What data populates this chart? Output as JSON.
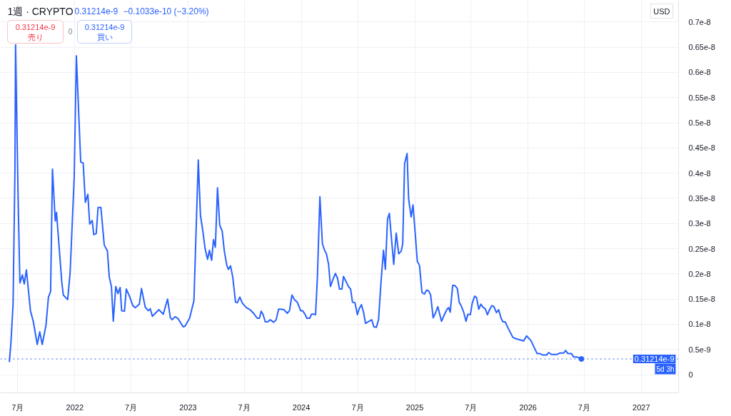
{
  "chart_data": {
    "type": "line",
    "title": "1週 · CRYPTO",
    "annotations": [
      "0.31214e-9",
      "−0.1033e-10 (−3.20%)",
      "0.31214e-9",
      "売り",
      "0",
      "0.31214e-9",
      "買い",
      "USD",
      "5d 3h"
    ],
    "xlim": [
      "2021-05-06",
      "2027-05-01"
    ],
    "xticks": [
      {
        "value": "2021-07",
        "label": "7月"
      },
      "2022",
      {
        "value": "2022-07",
        "label": "7月"
      },
      "2023",
      {
        "value": "2023-07",
        "label": "7月"
      },
      "2024",
      {
        "value": "2024-07",
        "label": "7月"
      },
      "2025",
      {
        "value": "2025-07",
        "label": "7月"
      },
      "2026",
      {
        "value": "2026-07",
        "label": "7月"
      },
      "2027"
    ],
    "ylim": [
      -3.6e-10,
      7.43e-09
    ],
    "yticks": [
      0,
      {
        "value": 5e-10,
        "label": "0.5e-9"
      },
      {
        "value": 1e-09,
        "label": "0.1e-8"
      },
      {
        "value": 1.5e-09,
        "label": "0.15e-8"
      },
      {
        "value": 2e-09,
        "label": "0.2e-8"
      },
      {
        "value": 2.5e-09,
        "label": "0.25e-8"
      },
      {
        "value": 3e-09,
        "label": "0.3e-8"
      },
      {
        "value": 3.5e-09,
        "label": "0.35e-8"
      },
      {
        "value": 4e-09,
        "label": "0.4e-8"
      },
      {
        "value": 4.5e-09,
        "label": "0.45e-8"
      },
      {
        "value": 5e-09,
        "label": "0.5e-8"
      },
      {
        "value": 5.5e-09,
        "label": "0.55e-8"
      },
      {
        "value": 6e-09,
        "label": "0.6e-8"
      },
      {
        "value": 6.5e-09,
        "label": "0.65e-8"
      },
      {
        "value": 7e-09,
        "label": "0.7e-8"
      }
    ],
    "grid": true,
    "ref_lines": [
      {
        "axis": "y",
        "value": 3.1214e-10,
        "label": "0.31214e-9",
        "color": "#2962ff",
        "line_style": "dotted"
      }
    ],
    "series": [
      {
        "color": "#2962ff",
        "x": [
          "2021-06-04",
          "2021-06-09",
          "2021-06-16",
          "2021-06-22",
          "2021-06-24",
          "2021-07-02",
          "2021-07-08",
          "2021-07-16",
          "2021-07-22",
          "2021-07-29",
          "2021-08-11",
          "2021-08-20",
          "2021-09-02",
          "2021-09-10",
          "2021-09-18",
          "2021-09-30",
          "2021-10-08",
          "2021-10-15",
          "2021-10-21",
          "2021-10-30",
          "2021-11-03",
          "2021-11-20",
          "2021-11-25",
          "2021-12-09",
          "2021-12-17",
          "2021-12-30",
          "2022-01-06",
          "2022-01-20",
          "2022-01-28",
          "2022-02-04",
          "2022-02-12",
          "2022-02-18",
          "2022-02-26",
          "2022-03-03",
          "2022-03-11",
          "2022-03-17",
          "2022-03-26",
          "2022-04-06",
          "2022-04-16",
          "2022-04-22",
          "2022-04-29",
          "2022-05-05",
          "2022-05-13",
          "2022-05-20",
          "2022-05-27",
          "2022-06-01",
          "2022-06-10",
          "2022-06-16",
          "2022-06-26",
          "2022-07-07",
          "2022-07-15",
          "2022-07-28",
          "2022-08-04",
          "2022-08-16",
          "2022-08-26",
          "2022-09-01",
          "2022-09-08",
          "2022-09-29",
          "2022-10-13",
          "2022-10-27",
          "2022-11-05",
          "2022-11-11",
          "2022-11-20",
          "2022-11-29",
          "2022-12-16",
          "2022-12-22",
          "2023-01-06",
          "2023-01-20",
          "2023-02-03",
          "2023-02-10",
          "2023-02-17",
          "2023-02-25",
          "2023-03-05",
          "2023-03-11",
          "2023-03-18",
          "2023-03-24",
          "2023-03-30",
          "2023-04-06",
          "2023-04-13",
          "2023-04-21",
          "2023-04-28",
          "2023-05-06",
          "2023-05-11",
          "2023-05-18",
          "2023-05-25",
          "2023-06-03",
          "2023-06-09",
          "2023-06-17",
          "2023-06-25",
          "2023-07-08",
          "2023-07-20",
          "2023-07-31",
          "2023-08-12",
          "2023-08-19",
          "2023-08-25",
          "2023-08-31",
          "2023-09-07",
          "2023-09-15",
          "2023-09-23",
          "2023-10-04",
          "2023-10-12",
          "2023-10-20",
          "2023-10-27",
          "2023-11-06",
          "2023-11-17",
          "2023-11-24",
          "2023-12-02",
          "2023-12-10",
          "2023-12-19",
          "2023-12-30",
          "2024-01-05",
          "2024-01-13",
          "2024-01-19",
          "2024-01-28",
          "2024-02-03",
          "2024-02-11",
          "2024-02-16",
          "2024-02-22",
          "2024-03-01",
          "2024-03-09",
          "2024-03-16",
          "2024-03-22",
          "2024-03-29",
          "2024-04-04",
          "2024-04-12",
          "2024-04-20",
          "2024-04-27",
          "2024-05-03",
          "2024-05-11",
          "2024-05-16",
          "2024-05-25",
          "2024-06-01",
          "2024-06-08",
          "2024-06-14",
          "2024-06-22",
          "2024-06-30",
          "2024-07-05",
          "2024-07-13",
          "2024-07-20",
          "2024-07-26",
          "2024-08-04",
          "2024-08-15",
          "2024-08-22",
          "2024-08-30",
          "2024-09-06",
          "2024-09-14",
          "2024-09-22",
          "2024-09-28",
          "2024-10-05",
          "2024-10-11",
          "2024-10-18",
          "2024-10-25",
          "2024-11-02",
          "2024-11-10",
          "2024-11-18",
          "2024-11-23",
          "2024-11-29",
          "2024-12-07",
          "2024-12-12",
          "2024-12-20",
          "2024-12-26",
          "2025-01-02",
          "2025-01-09",
          "2025-01-16",
          "2025-01-24",
          "2025-02-01",
          "2025-02-08",
          "2025-02-15",
          "2025-02-21",
          "2025-03-01",
          "2025-03-09",
          "2025-03-16",
          "2025-03-28",
          "2025-04-06",
          "2025-04-15",
          "2025-04-20",
          "2025-04-25",
          "2025-05-03",
          "2025-05-10",
          "2025-05-18",
          "2025-05-24",
          "2025-05-31",
          "2025-06-08",
          "2025-06-15",
          "2025-06-21",
          "2025-06-29",
          "2025-07-05",
          "2025-07-13",
          "2025-07-19",
          "2025-07-26",
          "2025-08-02",
          "2025-08-10",
          "2025-08-16",
          "2025-08-23",
          "2025-08-30",
          "2025-09-06",
          "2025-09-13",
          "2025-09-21",
          "2025-09-28",
          "2025-10-06",
          "2025-10-12",
          "2025-10-19",
          "2025-10-29",
          "2025-11-13",
          "2025-11-25",
          "2025-12-18",
          "2025-12-27",
          "2026-01-10",
          "2026-01-30",
          "2026-02-07",
          "2026-02-18",
          "2026-03-02",
          "2026-03-08",
          "2026-03-18",
          "2026-04-03",
          "2026-04-14",
          "2026-04-26",
          "2026-05-02",
          "2026-05-09",
          "2026-05-21",
          "2026-05-28",
          "2026-06-08",
          "2026-06-22"
        ],
        "values": [
          2.5e-10,
          6.3e-10,
          1.4e-09,
          4.05e-09,
          6.55e-09,
          3.58e-09,
          1.82e-09,
          1.98e-09,
          1.8e-09,
          2.08e-09,
          1.27e-09,
          1.06e-09,
          6e-10,
          8.5e-10,
          6e-10,
          9.8e-10,
          1.54e-09,
          1.65e-09,
          4.08e-09,
          3.05e-09,
          3.22e-09,
          1.84e-09,
          1.58e-09,
          1.49e-09,
          2.04e-09,
          3.91e-09,
          6.33e-09,
          4.22e-09,
          4.2e-09,
          3.42e-09,
          3.58e-09,
          2.99e-09,
          3.06e-09,
          2.78e-09,
          2.8e-09,
          3.32e-09,
          3.32e-09,
          2.57e-09,
          2.46e-09,
          1.94e-09,
          1.75e-09,
          1.06e-09,
          1.75e-09,
          1.61e-09,
          1.73e-09,
          1.27e-09,
          1.26e-09,
          1.7e-09,
          1.56e-09,
          1.37e-09,
          1.33e-09,
          1.4e-09,
          1.71e-09,
          1.34e-09,
          1.27e-09,
          1.31e-09,
          1.16e-09,
          1.29e-09,
          1.2e-09,
          1.5e-09,
          1.13e-09,
          1.09e-09,
          1.15e-09,
          1.12e-09,
          9.5e-10,
          9.6e-10,
          1.12e-09,
          1.47e-09,
          4.26e-09,
          3.16e-09,
          2.88e-09,
          2.5e-09,
          2.29e-09,
          2.47e-09,
          2.27e-09,
          2.68e-09,
          2.53e-09,
          3.71e-09,
          2.97e-09,
          2.85e-09,
          2.45e-09,
          2.17e-09,
          2.09e-09,
          2.16e-09,
          1.94e-09,
          1.44e-09,
          1.43e-09,
          1.54e-09,
          1.42e-09,
          1.33e-09,
          1.29e-09,
          1.22e-09,
          1.12e-09,
          1.12e-09,
          1.26e-09,
          1.19e-09,
          1.05e-09,
          1.05e-09,
          1.09e-09,
          1.04e-09,
          1.09e-09,
          1.3e-09,
          1.3e-09,
          1.29e-09,
          1.22e-09,
          1.27e-09,
          1.58e-09,
          1.49e-09,
          1.44e-09,
          1.27e-09,
          1.27e-09,
          1.2e-09,
          1.12e-09,
          1.12e-09,
          1.2e-09,
          1.2e-09,
          1.19e-09,
          1.94e-09,
          3.53e-09,
          2.6e-09,
          2.47e-09,
          2.4e-09,
          2.19e-09,
          1.75e-09,
          1.89e-09,
          2.01e-09,
          1.91e-09,
          1.7e-09,
          1.7e-09,
          1.95e-09,
          1.84e-09,
          1.75e-09,
          1.7e-09,
          1.44e-09,
          1.43e-09,
          1.19e-09,
          1.3e-09,
          1.39e-09,
          1.23e-09,
          1.02e-09,
          1.05e-09,
          1.09e-09,
          9.5e-10,
          9.4e-10,
          1.09e-09,
          1.84e-09,
          2.47e-09,
          2.09e-09,
          3.09e-09,
          3.2e-09,
          2.68e-09,
          2.19e-09,
          2.81e-09,
          2.4e-09,
          2.45e-09,
          2.6e-09,
          4.19e-09,
          4.39e-09,
          3.49e-09,
          3.13e-09,
          3.37e-09,
          2.83e-09,
          2.25e-09,
          2.17e-09,
          1.63e-09,
          1.6e-09,
          1.68e-09,
          1.66e-09,
          1.58e-09,
          1.13e-09,
          1.23e-09,
          1.35e-09,
          1.06e-09,
          1.19e-09,
          1.3e-09,
          1.33e-09,
          1.24e-09,
          1.77e-09,
          1.77e-09,
          1.71e-09,
          1.44e-09,
          1.36e-09,
          1.23e-09,
          1.06e-09,
          1.2e-09,
          1.19e-09,
          1.42e-09,
          1.56e-09,
          1.53e-09,
          1.3e-09,
          1.4e-09,
          1.33e-09,
          1.31e-09,
          1.19e-09,
          1.29e-09,
          1.37e-09,
          1.35e-09,
          1.23e-09,
          1.29e-09,
          1.12e-09,
          1.05e-09,
          1.05e-09,
          9.2e-10,
          7.4e-10,
          7.1e-10,
          6.7e-10,
          7.7e-10,
          6.8e-10,
          4.2e-10,
          4.2e-10,
          3.9e-10,
          3.9e-10,
          4.4e-10,
          4e-10,
          4e-10,
          4.3e-10,
          4.3e-10,
          4.8e-10,
          4.2e-10,
          4.2e-10,
          3.5e-10,
          3.5e-10,
          3.1214e-10
        ]
      },
      {
        "type": "scatter",
        "marker": "circle",
        "color": "#2962ff",
        "x": [
          "2026-06-22"
        ],
        "values": [
          3.1214e-10
        ]
      }
    ]
  }
}
